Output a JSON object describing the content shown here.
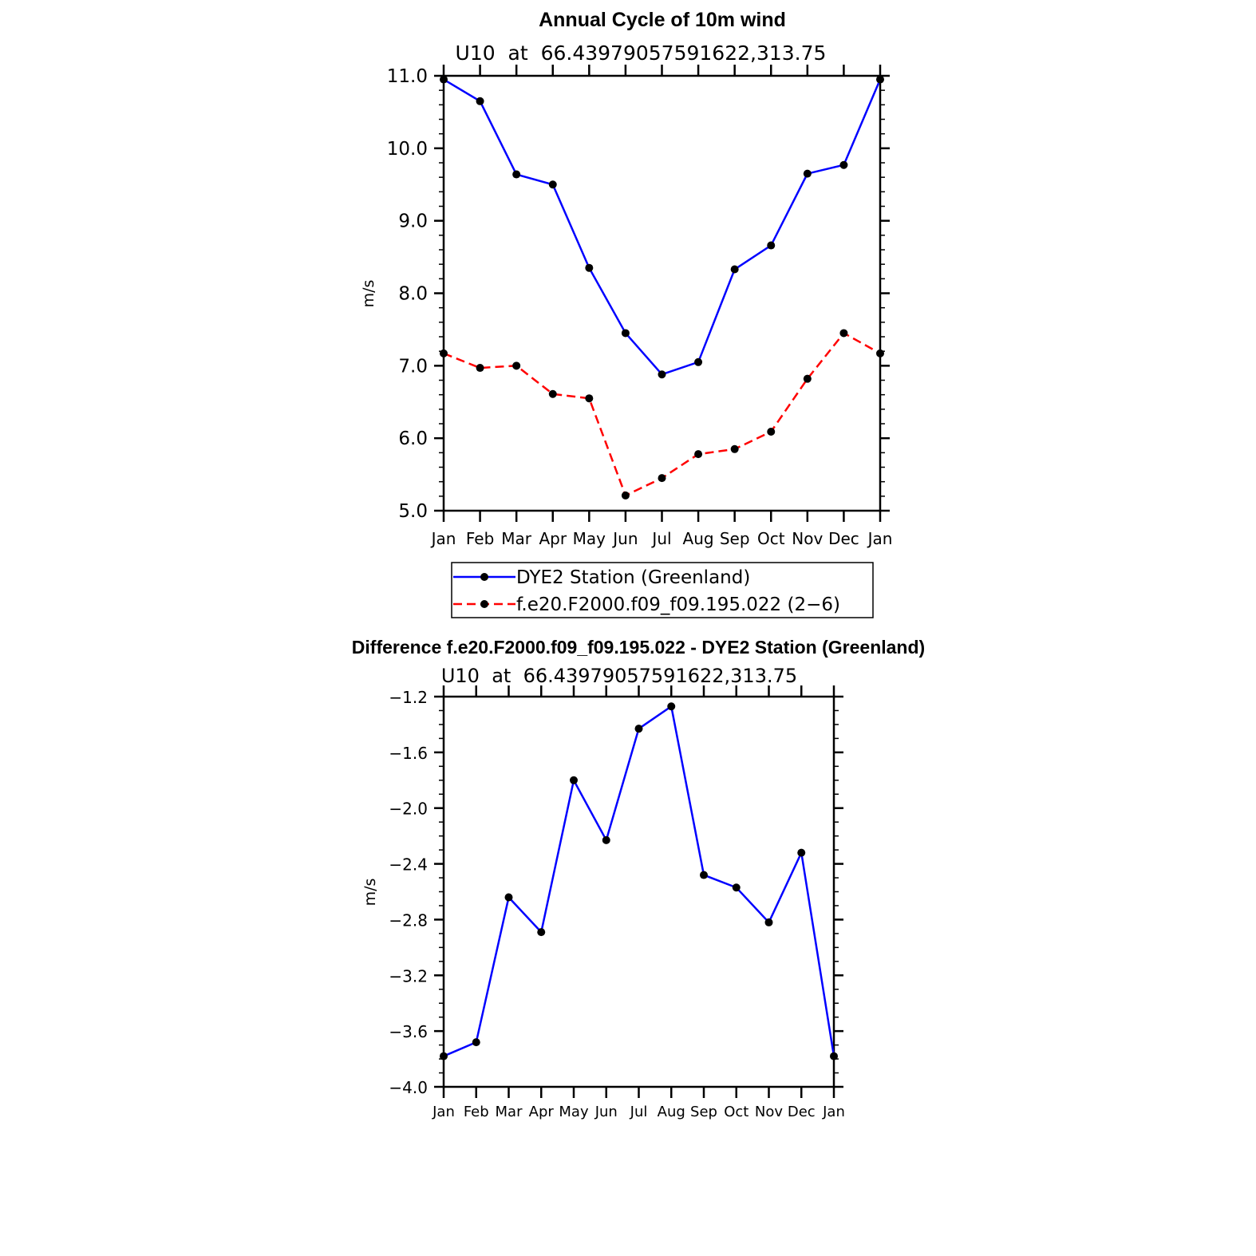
{
  "chart_data": [
    {
      "type": "line",
      "title": "Annual Cycle of 10m wind",
      "subtitle": "U10  at  66.43979057591622,313.75",
      "xlabel": "",
      "ylabel": "m/s",
      "categories": [
        "Jan",
        "Feb",
        "Mar",
        "Apr",
        "May",
        "Jun",
        "Jul",
        "Aug",
        "Sep",
        "Oct",
        "Nov",
        "Dec",
        "Jan"
      ],
      "ylim": [
        5.0,
        11.0
      ],
      "yticks": [
        "5.0",
        "6.0",
        "7.0",
        "8.0",
        "9.0",
        "10.0",
        "11.0"
      ],
      "legend_position": "bottom",
      "series": [
        {
          "name": "DYE2 Station (Greenland)",
          "color": "#0000ff",
          "style": "solid",
          "values": [
            10.95,
            10.65,
            9.64,
            9.5,
            8.35,
            7.45,
            6.88,
            7.05,
            8.33,
            8.66,
            9.65,
            9.77,
            10.95
          ]
        },
        {
          "name": "f.e20.F2000.f09_f09.195.022 (2−6)",
          "color": "#ff0000",
          "style": "dashed",
          "values": [
            7.17,
            6.97,
            7.0,
            6.61,
            6.55,
            5.21,
            5.45,
            5.78,
            5.85,
            6.09,
            6.82,
            7.45,
            7.17
          ]
        }
      ]
    },
    {
      "type": "line",
      "title": "Difference f.e20.F2000.f09_f09.195.022 - DYE2 Station (Greenland)",
      "subtitle": "U10  at  66.43979057591622,313.75",
      "xlabel": "",
      "ylabel": "m/s",
      "categories": [
        "Jan",
        "Feb",
        "Mar",
        "Apr",
        "May",
        "Jun",
        "Jul",
        "Aug",
        "Sep",
        "Oct",
        "Nov",
        "Dec",
        "Jan"
      ],
      "ylim": [
        -4.0,
        -1.2
      ],
      "yticks": [
        "−4.0",
        "−3.6",
        "−3.2",
        "−2.8",
        "−2.4",
        "−2.0",
        "−1.6",
        "−1.2"
      ],
      "series": [
        {
          "color": "#0000ff",
          "style": "solid",
          "values": [
            -3.78,
            -3.68,
            -2.64,
            -2.89,
            -1.8,
            -2.23,
            -1.43,
            -1.27,
            -2.48,
            -2.57,
            -2.82,
            -2.32,
            -3.78
          ]
        }
      ]
    }
  ]
}
